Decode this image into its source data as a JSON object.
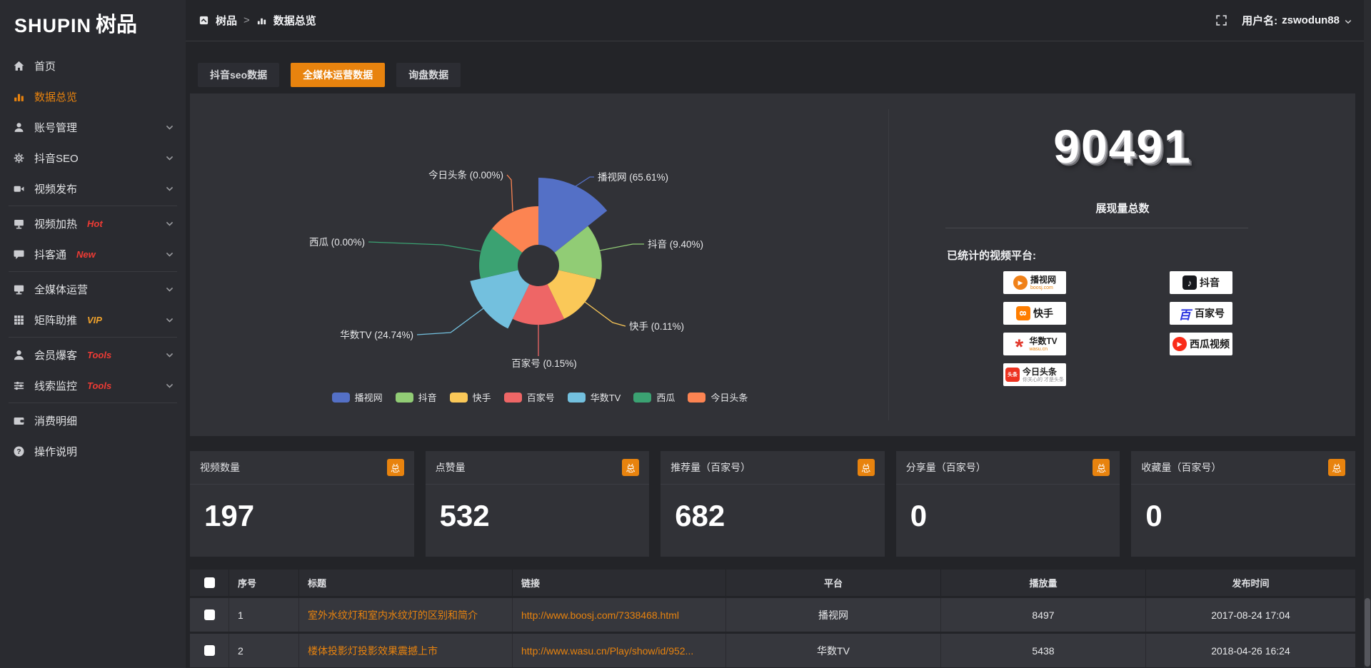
{
  "topbar": {
    "logo_latin": "SHUPIN",
    "logo_cjk": "树品",
    "breadcrumb": [
      {
        "label": "树品"
      },
      {
        "label": "数据总览"
      }
    ],
    "breadcrumb_separator": ">",
    "username_label": "用户名:",
    "username": "zswodun88"
  },
  "sidebar": {
    "items": [
      {
        "label": "首页",
        "icon": "home-icon"
      },
      {
        "label": "数据总览",
        "icon": "bar-chart-icon",
        "active": true
      },
      {
        "label": "账号管理",
        "icon": "user-icon",
        "chevron": true
      },
      {
        "label": "抖音SEO",
        "icon": "gear-icon",
        "chevron": true
      },
      {
        "label": "视频发布",
        "icon": "video-camera-icon",
        "chevron": true,
        "divider_after": true
      },
      {
        "label": "视频加热",
        "icon": "screen-icon",
        "chevron": true,
        "badge": "Hot",
        "badge_color": "#ee3b34"
      },
      {
        "label": "抖客通",
        "icon": "chat-icon",
        "chevron": true,
        "badge": "New",
        "badge_color": "#ee3b34",
        "divider_after": true
      },
      {
        "label": "全媒体运营",
        "icon": "monitor-icon",
        "chevron": true
      },
      {
        "label": "矩阵助推",
        "icon": "grid-icon",
        "chevron": true,
        "badge": "VIP",
        "badge_color": "#efa22c",
        "divider_after": true
      },
      {
        "label": "会员爆客",
        "icon": "member-icon",
        "chevron": true,
        "badge": "Tools",
        "badge_color": "#ee3b34"
      },
      {
        "label": "线索监控",
        "icon": "sliders-icon",
        "chevron": true,
        "badge": "Tools",
        "badge_color": "#ee3b34",
        "divider_after": true
      },
      {
        "label": "消费明细",
        "icon": "wallet-icon"
      },
      {
        "label": "操作说明",
        "icon": "help-icon"
      }
    ]
  },
  "tabs": [
    {
      "label": "抖音seo数据",
      "active": false
    },
    {
      "label": "全媒体运营数据",
      "active": true
    },
    {
      "label": "询盘数据",
      "active": false
    }
  ],
  "chart_data": {
    "type": "pie",
    "variant": "nightingale-rose",
    "series": [
      {
        "name": "播视网",
        "value": 65.61,
        "color": "#5470c6"
      },
      {
        "name": "抖音",
        "value": 9.4,
        "color": "#91cc75"
      },
      {
        "name": "快手",
        "value": 0.11,
        "color": "#fac858"
      },
      {
        "name": "百家号",
        "value": 0.15,
        "color": "#ee6666"
      },
      {
        "name": "华数TV",
        "value": 24.74,
        "color": "#73c0de"
      },
      {
        "name": "西瓜",
        "value": 0.0,
        "color": "#3ba272"
      },
      {
        "name": "今日头条",
        "value": 0.0,
        "color": "#fc8452"
      }
    ],
    "unit": "%",
    "label_format": "{name} ({value}%)",
    "legend_position": "bottom",
    "legend": [
      "播视网",
      "抖音",
      "快手",
      "百家号",
      "华数TV",
      "西瓜",
      "今日头条"
    ]
  },
  "summary": {
    "total_value": "90491",
    "total_label": "展现量总数",
    "platforms_label": "已统计的视频平台:",
    "platforms": [
      {
        "name": "播视网",
        "sub": "boosj.com",
        "icon": "boosj-play-icon"
      },
      {
        "name": "抖音",
        "icon": "douyin-note-icon"
      },
      {
        "name": "快手",
        "icon": "kuaishou-icon"
      },
      {
        "name": "百家号",
        "icon": "baijiahao-icon"
      },
      {
        "name": "华数TV",
        "sub": "wasu.cn",
        "icon": "wasu-burst-icon"
      },
      {
        "name": "西瓜视频",
        "icon": "xigua-play-icon"
      },
      {
        "name": "今日头条",
        "sub": "你关心的 才是头条",
        "icon": "toutiao-icon"
      }
    ]
  },
  "stat_cards": [
    {
      "title": "视频数量",
      "badge": "总",
      "value": "197"
    },
    {
      "title": "点赞量",
      "badge": "总",
      "value": "532"
    },
    {
      "title": "推荐量（百家号）",
      "badge": "总",
      "value": "682"
    },
    {
      "title": "分享量（百家号）",
      "badge": "总",
      "value": "0"
    },
    {
      "title": "收藏量（百家号）",
      "badge": "总",
      "value": "0"
    }
  ],
  "table": {
    "headers": {
      "index": "序号",
      "title": "标题",
      "link": "链接",
      "platform": "平台",
      "views": "播放量",
      "time": "发布时间"
    },
    "rows": [
      {
        "index": "1",
        "title": "室外水纹灯和室内水纹灯的区别和简介",
        "link": "http://www.boosj.com/7338468.html",
        "platform": "播视网",
        "views": "8497",
        "time": "2017-08-24 17:04",
        "checked": false
      },
      {
        "index": "2",
        "title": "楼体投影灯投影效果震撼上市",
        "link": "http://www.wasu.cn/Play/show/id/952...",
        "platform": "华数TV",
        "views": "5438",
        "time": "2018-04-26 16:24",
        "checked": false
      }
    ]
  }
}
